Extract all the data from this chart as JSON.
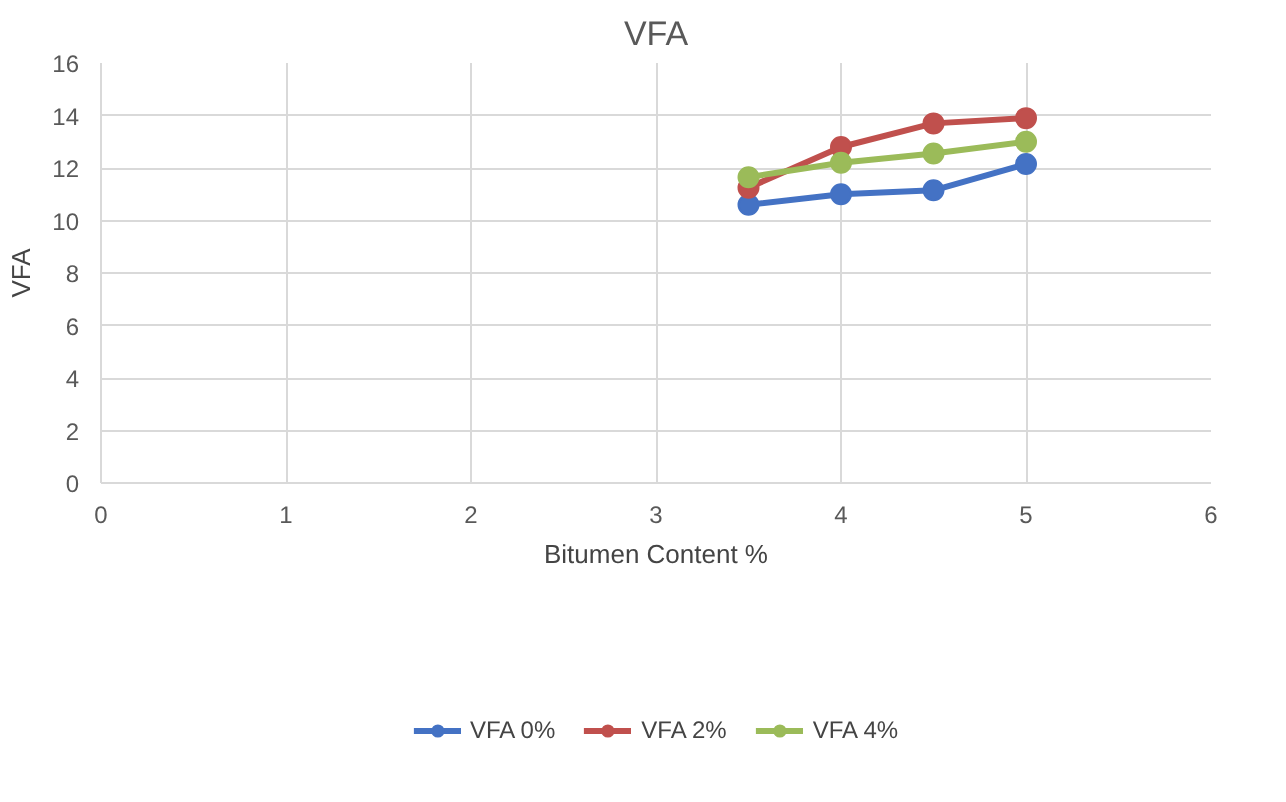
{
  "chart_data": {
    "type": "line",
    "title": "VFA",
    "xlabel": "Bitumen Content %",
    "ylabel": "VFA",
    "x": [
      3.5,
      4,
      4.5,
      5
    ],
    "series": [
      {
        "name": "VFA 0%",
        "color": "#4472c4",
        "values": [
          10.6,
          11.0,
          11.15,
          12.15
        ]
      },
      {
        "name": "VFA 2%",
        "color": "#c0504d",
        "values": [
          11.25,
          12.8,
          13.7,
          13.9
        ]
      },
      {
        "name": "VFA 4%",
        "color": "#9bbb59",
        "values": [
          11.65,
          12.2,
          12.55,
          13.0
        ]
      }
    ],
    "xlim": [
      0,
      6
    ],
    "xticks": [
      0,
      1,
      2,
      3,
      4,
      5,
      6
    ],
    "ylim": [
      0,
      16
    ],
    "yticks": [
      0,
      2,
      4,
      6,
      8,
      10,
      12,
      14,
      16
    ],
    "grid": true,
    "legend": "bottom",
    "marker": "circle",
    "line_style": "solid"
  }
}
